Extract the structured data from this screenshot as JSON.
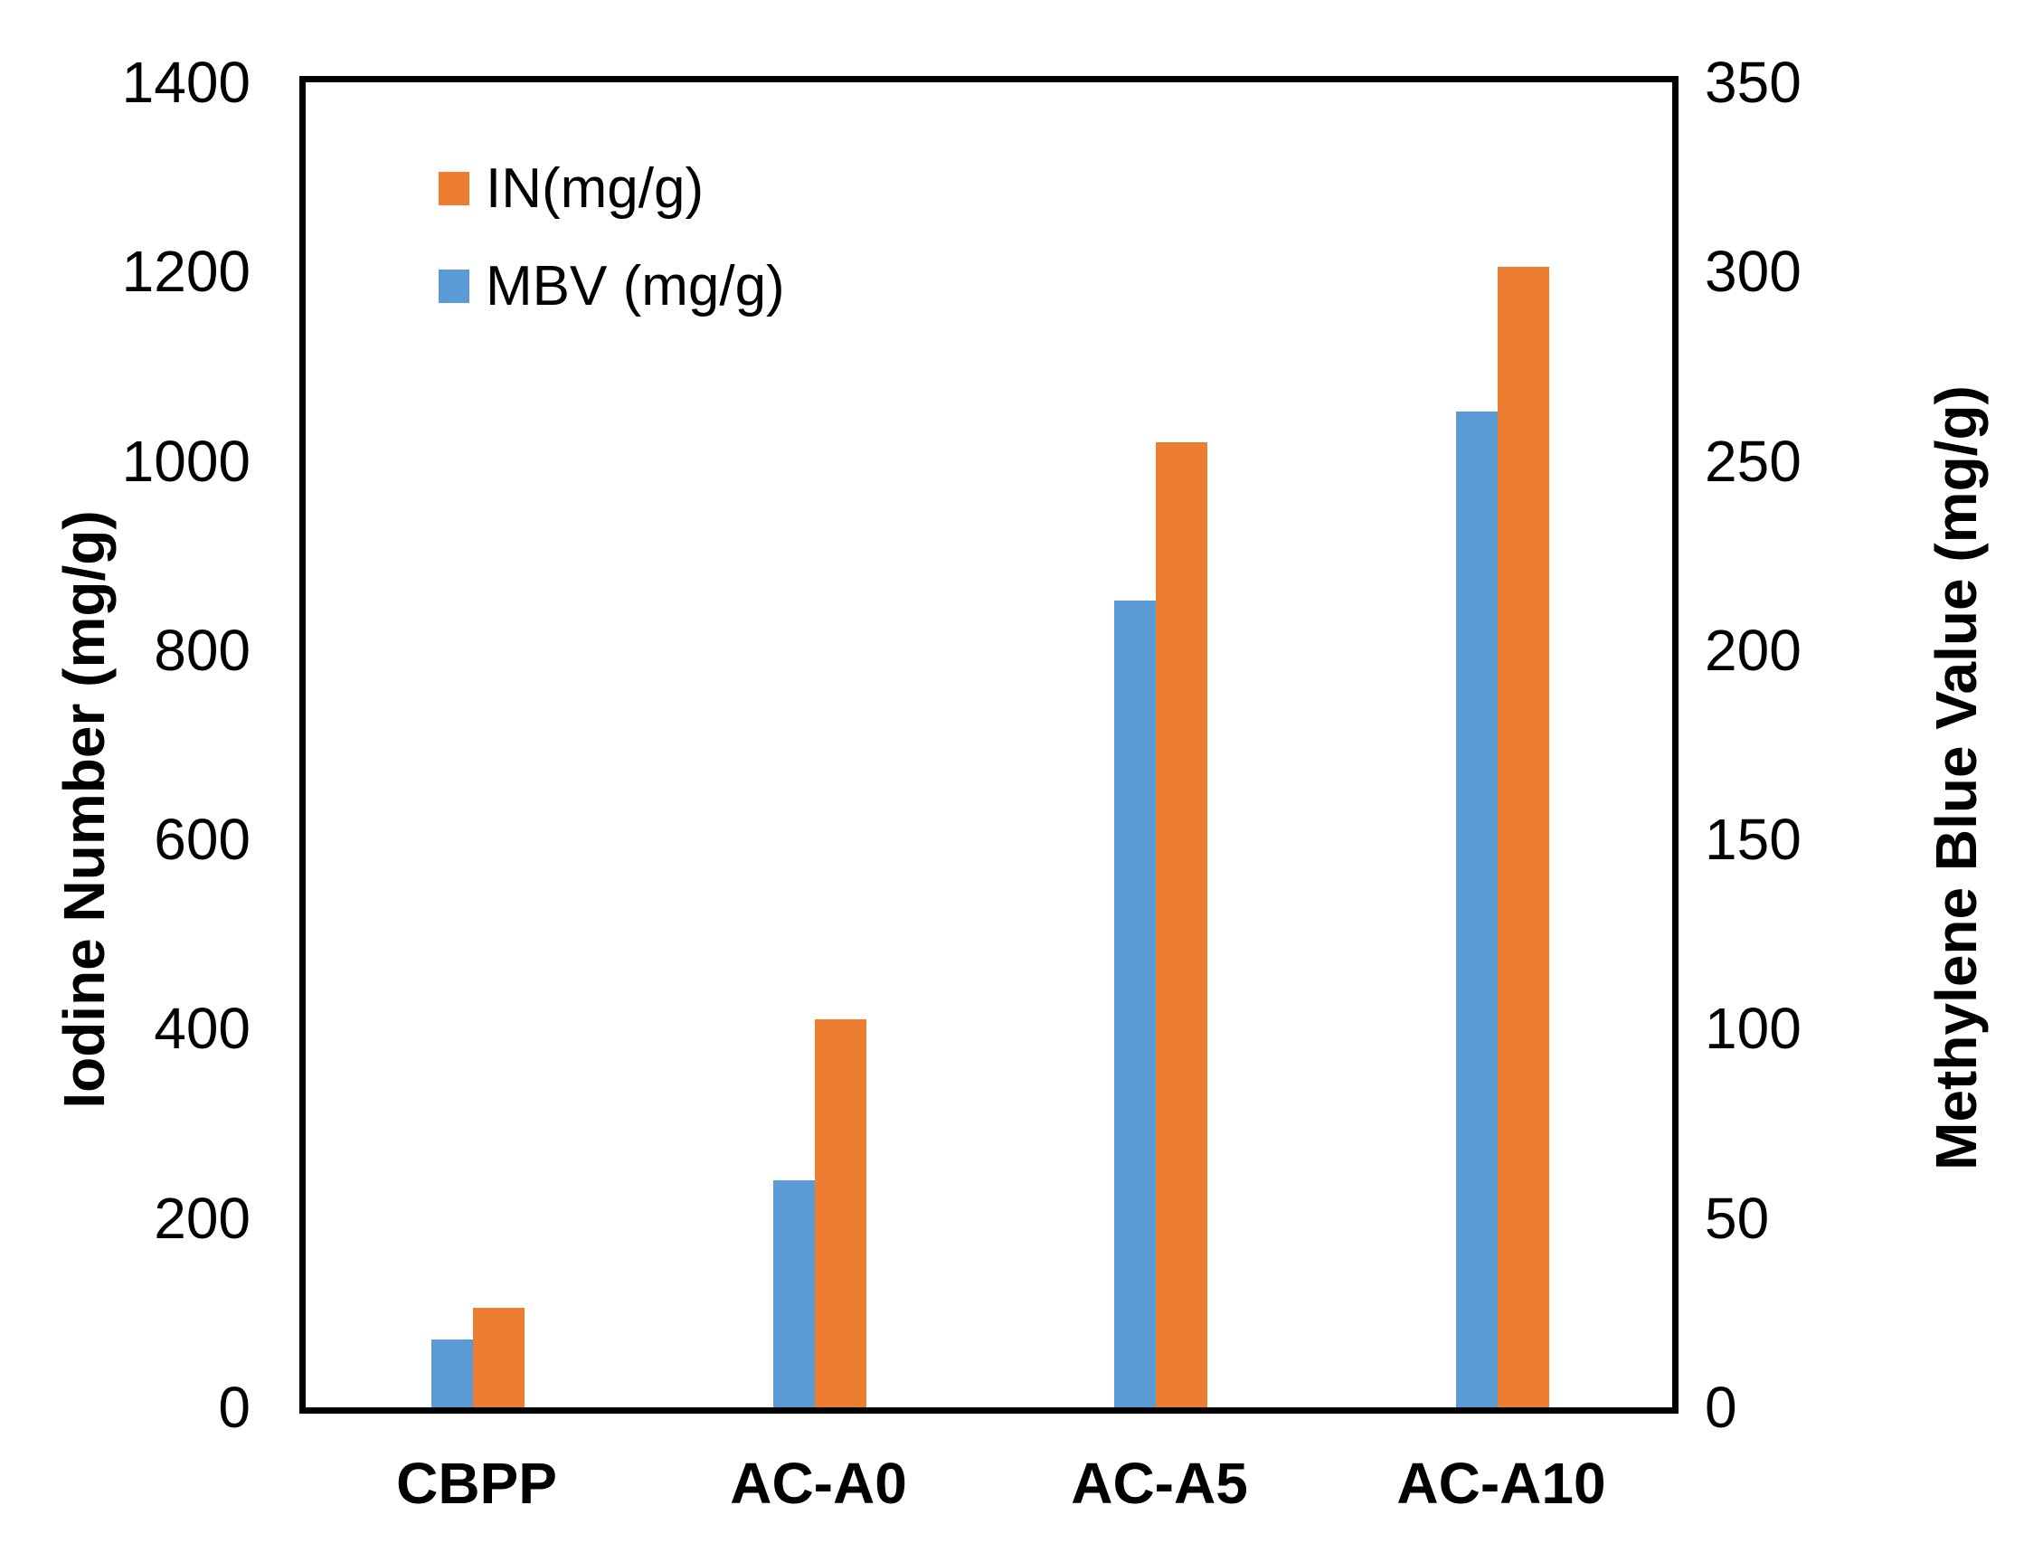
{
  "chart_data": {
    "type": "bar",
    "title": "",
    "categories": [
      "CBPP",
      "AC-A0",
      "AC-A5",
      "AC-A10"
    ],
    "series": [
      {
        "name": "IN(mg/g)",
        "axis": "left",
        "color": "#ED7D31",
        "values": [
          105,
          410,
          1020,
          1205
        ]
      },
      {
        "name": "MBV (mg/g)",
        "axis": "right",
        "color": "#5B9BD5",
        "values": [
          18,
          60,
          213,
          263
        ]
      }
    ],
    "left_axis": {
      "label": "Iodine Number (mg/g)",
      "min": 0,
      "max": 1400,
      "ticks": [
        "1400",
        "1200",
        "1000",
        "800",
        "600",
        "400",
        "200",
        "0"
      ]
    },
    "right_axis": {
      "label": "Methylene Blue Value (mg/g)",
      "min": 0,
      "max": 350,
      "ticks": [
        "350",
        "300",
        "250",
        "200",
        "150",
        "100",
        "50",
        "0"
      ]
    },
    "legend_position": "top-left-inside",
    "grid": false,
    "colors": {
      "frame": "#000000",
      "background": "#ffffff",
      "text": "#000000"
    }
  }
}
